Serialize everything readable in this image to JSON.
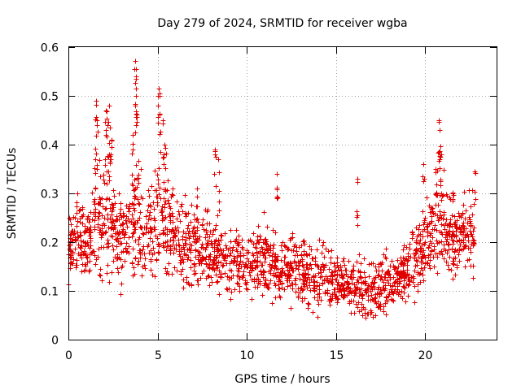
{
  "chart_data": {
    "type": "scatter",
    "marker": "plus",
    "color": "#e00000",
    "title": "Day 279 of 2024, SRMTID for receiver wgba",
    "xlabel": "GPS time / hours",
    "ylabel": "SRMTID / TECUs",
    "xlim": [
      0,
      24
    ],
    "ylim": [
      0,
      0.6
    ],
    "xticks": [
      0,
      5,
      10,
      15,
      20
    ],
    "xtick_labels": [
      "0",
      "5",
      "10",
      "15",
      "20"
    ],
    "yticks": [
      0,
      0.1,
      0.2,
      0.3,
      0.4,
      0.5,
      0.6
    ],
    "ytick_labels": [
      "0",
      "0.1",
      "0.2",
      "0.3",
      "0.4",
      "0.5",
      "0.6"
    ],
    "grid": true,
    "x_data_range": [
      0,
      22.75
    ],
    "envelope": {
      "x": [
        0,
        1,
        1.5,
        2,
        2.5,
        3,
        3.5,
        4,
        4.5,
        5,
        5.5,
        6,
        7,
        8,
        9,
        10,
        11,
        12,
        13,
        14,
        15,
        16,
        17,
        17.5,
        18,
        19,
        20,
        20.5,
        21,
        22,
        22.75
      ],
      "y_typical": [
        0.2,
        0.2,
        0.24,
        0.26,
        0.23,
        0.2,
        0.22,
        0.24,
        0.22,
        0.25,
        0.25,
        0.21,
        0.19,
        0.18,
        0.16,
        0.15,
        0.16,
        0.15,
        0.14,
        0.13,
        0.12,
        0.11,
        0.1,
        0.11,
        0.12,
        0.15,
        0.19,
        0.22,
        0.23,
        0.21,
        0.22
      ],
      "y_spread": [
        0.06,
        0.07,
        0.09,
        0.12,
        0.1,
        0.07,
        0.09,
        0.12,
        0.09,
        0.11,
        0.1,
        0.07,
        0.07,
        0.07,
        0.06,
        0.06,
        0.07,
        0.06,
        0.06,
        0.06,
        0.05,
        0.05,
        0.05,
        0.05,
        0.05,
        0.06,
        0.07,
        0.09,
        0.09,
        0.07,
        0.07
      ]
    },
    "peaks": [
      {
        "x": 0.5,
        "y": 0.3
      },
      {
        "x": 1.5,
        "y": 0.37
      },
      {
        "x": 1.55,
        "y": 0.49
      },
      {
        "x": 1.6,
        "y": 0.45
      },
      {
        "x": 2.1,
        "y": 0.47
      },
      {
        "x": 2.2,
        "y": 0.44
      },
      {
        "x": 2.3,
        "y": 0.48
      },
      {
        "x": 2.4,
        "y": 0.41
      },
      {
        "x": 3.6,
        "y": 0.42
      },
      {
        "x": 3.75,
        "y": 0.572
      },
      {
        "x": 3.8,
        "y": 0.54
      },
      {
        "x": 3.8,
        "y": 0.5
      },
      {
        "x": 5.05,
        "y": 0.515
      },
      {
        "x": 5.1,
        "y": 0.5
      },
      {
        "x": 5.3,
        "y": 0.45
      },
      {
        "x": 5.4,
        "y": 0.4
      },
      {
        "x": 7.2,
        "y": 0.31
      },
      {
        "x": 8.2,
        "y": 0.39
      },
      {
        "x": 8.4,
        "y": 0.37
      },
      {
        "x": 11.7,
        "y": 0.34
      },
      {
        "x": 16.2,
        "y": 0.33
      },
      {
        "x": 19.9,
        "y": 0.36
      },
      {
        "x": 20.6,
        "y": 0.35
      },
      {
        "x": 20.75,
        "y": 0.45
      },
      {
        "x": 20.8,
        "y": 0.43
      },
      {
        "x": 20.9,
        "y": 0.38
      },
      {
        "x": 22.75,
        "y": 0.345
      }
    ],
    "min_observed": 0.035
  }
}
